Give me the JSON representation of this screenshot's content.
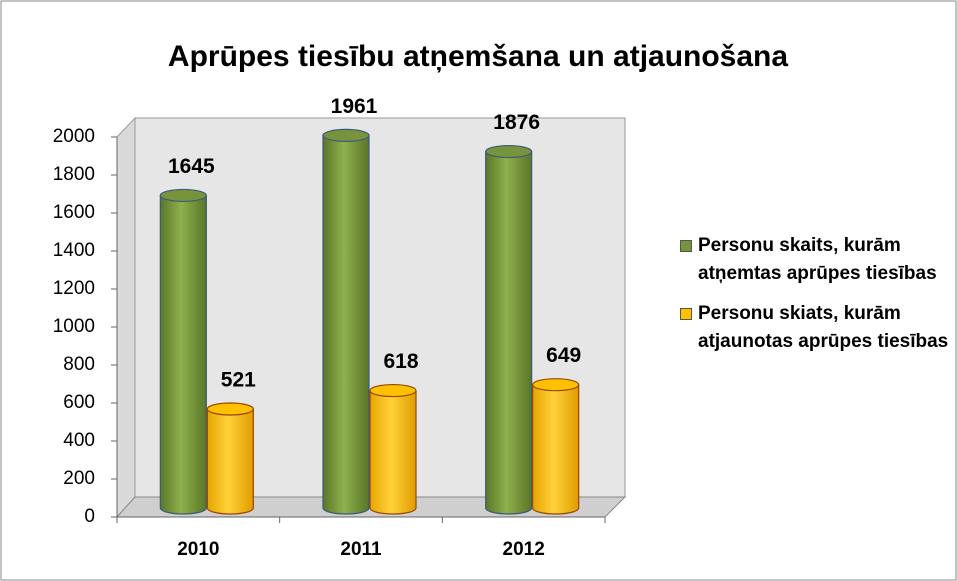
{
  "chart_data": {
    "type": "bar3d",
    "title": "Aprūpes tiesību atņemšana un atjaunošana",
    "categories": [
      "2010",
      "2011",
      "2012"
    ],
    "series": [
      {
        "name": "Personu skaits, kurām atņemtas aprūpes tiesības",
        "color": "#77933c",
        "values": [
          1645,
          1961,
          1876
        ]
      },
      {
        "name": "Personu skiats, kurām atjaunotas aprūpes tiesības",
        "color": "#ffc000",
        "values": [
          521,
          618,
          649
        ]
      }
    ],
    "ylim": [
      0,
      2000
    ],
    "yticks": [
      0,
      200,
      400,
      600,
      800,
      1000,
      1200,
      1400,
      1600,
      1800,
      2000
    ],
    "legend": "right"
  }
}
